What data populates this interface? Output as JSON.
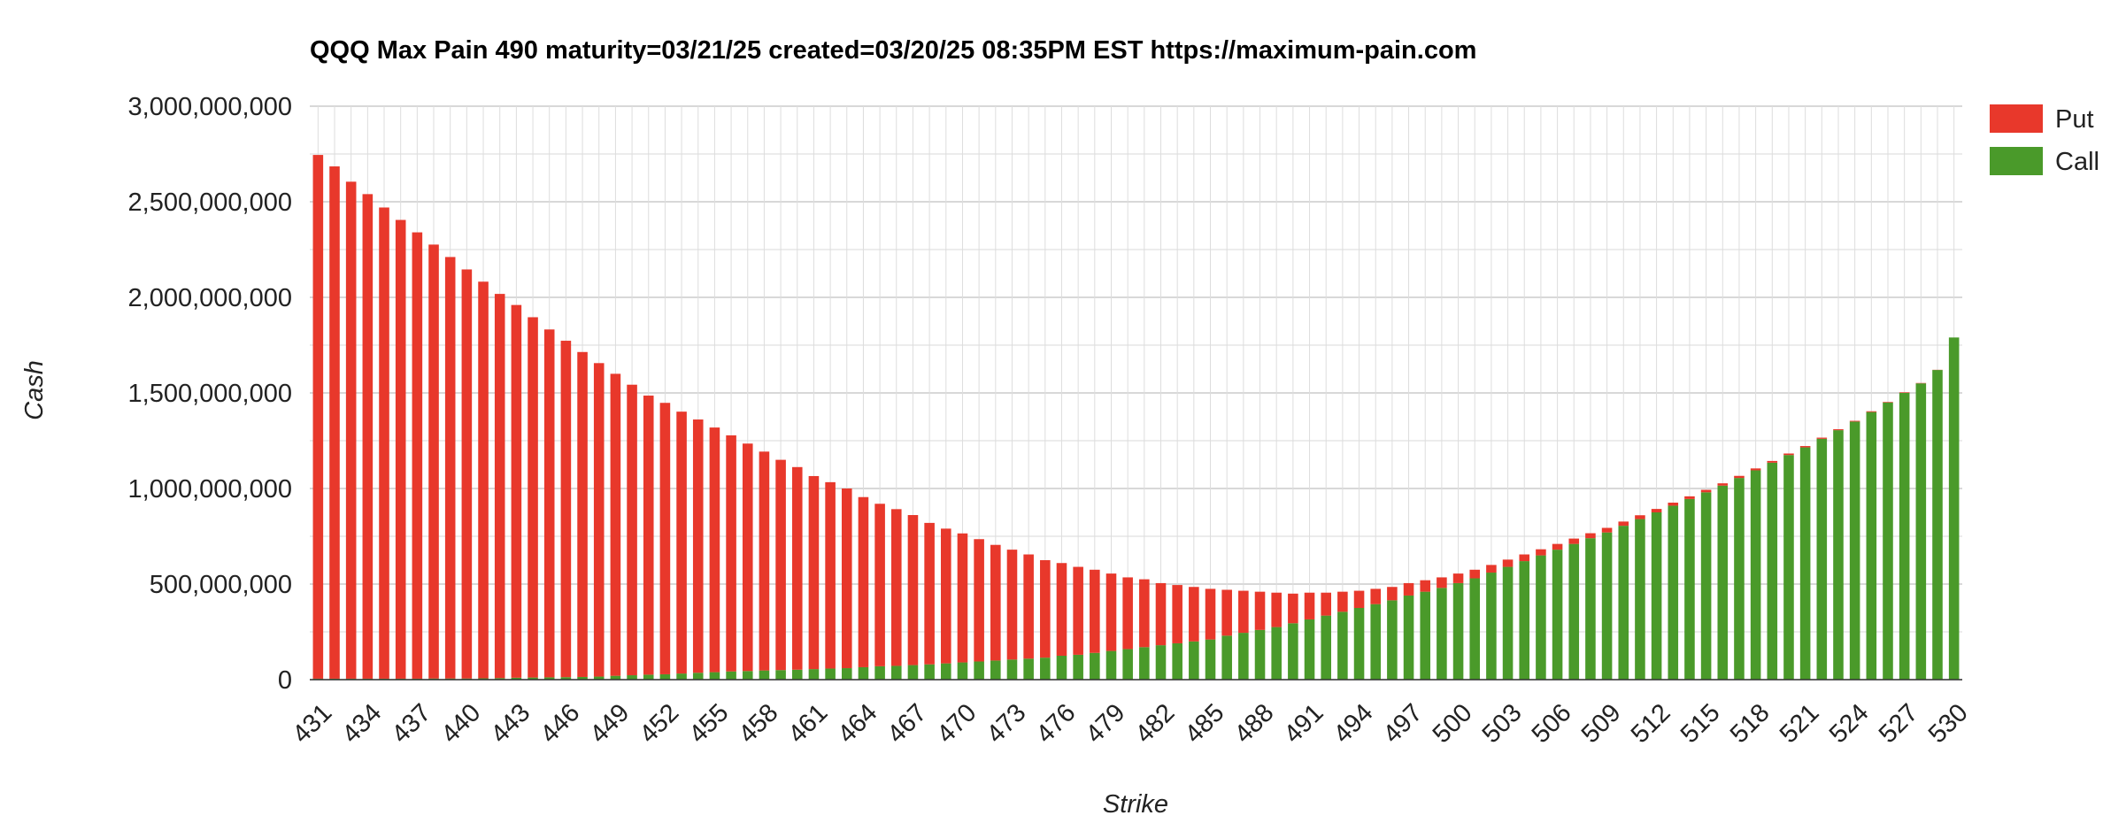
{
  "chart_data": {
    "type": "bar",
    "stacked": true,
    "title": "QQQ Max Pain 490 maturity=03/21/25 created=03/20/25 08:35PM EST https://maximum-pain.com",
    "xlabel": "Strike",
    "ylabel": "Cash",
    "ylim": [
      0,
      3000000000
    ],
    "yticks": [
      "0",
      "500,000,000",
      "1,000,000,000",
      "1,500,000,000",
      "2,000,000,000",
      "2,500,000,000",
      "3,000,000,000"
    ],
    "xticks": [
      "431",
      "434",
      "437",
      "440",
      "443",
      "446",
      "449",
      "452",
      "455",
      "458",
      "461",
      "464",
      "467",
      "470",
      "473",
      "476",
      "479",
      "482",
      "485",
      "488",
      "491",
      "494",
      "497",
      "500",
      "503",
      "506",
      "509",
      "512",
      "515",
      "518",
      "521",
      "524",
      "527",
      "530"
    ],
    "legend_position": "right",
    "grid": true,
    "categories": [
      431,
      432,
      433,
      434,
      435,
      436,
      437,
      438,
      439,
      440,
      441,
      442,
      443,
      444,
      445,
      446,
      447,
      448,
      449,
      450,
      451,
      452,
      453,
      454,
      455,
      456,
      457,
      458,
      459,
      460,
      461,
      462,
      463,
      464,
      465,
      466,
      467,
      468,
      469,
      470,
      471,
      472,
      473,
      474,
      475,
      476,
      477,
      478,
      479,
      480,
      481,
      482,
      483,
      484,
      485,
      486,
      487,
      488,
      489,
      490,
      491,
      492,
      493,
      494,
      495,
      496,
      497,
      498,
      499,
      500,
      501,
      502,
      503,
      504,
      505,
      506,
      507,
      508,
      509,
      510,
      511,
      512,
      513,
      514,
      515,
      516,
      517,
      518,
      519,
      520,
      521,
      522,
      523,
      524,
      525,
      526,
      527,
      528,
      529,
      530
    ],
    "series": [
      {
        "name": "Put",
        "color": "#e8382b",
        "values": [
          2740000000,
          2680000000,
          2600000000,
          2535000000,
          2465000000,
          2400000000,
          2335000000,
          2270000000,
          2205000000,
          2140000000,
          2075000000,
          2010000000,
          1950000000,
          1885000000,
          1820000000,
          1760000000,
          1700000000,
          1640000000,
          1580000000,
          1520000000,
          1460000000,
          1420000000,
          1370000000,
          1325000000,
          1280000000,
          1235000000,
          1190000000,
          1145000000,
          1100000000,
          1060000000,
          1010000000,
          975000000,
          940000000,
          890000000,
          850000000,
          820000000,
          785000000,
          740000000,
          705000000,
          675000000,
          640000000,
          605000000,
          575000000,
          545000000,
          510000000,
          485000000,
          460000000,
          435000000,
          405000000,
          375000000,
          355000000,
          325000000,
          305000000,
          285000000,
          265000000,
          240000000,
          220000000,
          200000000,
          180000000,
          155000000,
          140000000,
          120000000,
          105000000,
          90000000,
          80000000,
          70000000,
          65000000,
          60000000,
          55000000,
          50000000,
          45000000,
          40000000,
          38000000,
          35000000,
          32000000,
          30000000,
          28000000,
          26000000,
          24000000,
          22000000,
          20000000,
          18000000,
          16000000,
          14000000,
          13000000,
          12000000,
          11000000,
          10000000,
          9000000,
          8000000,
          7000000,
          6000000,
          5000000,
          4000000,
          4000000,
          3000000,
          3000000,
          2000000,
          1000000,
          0
        ]
      },
      {
        "name": "Call",
        "color": "#4a9a2a",
        "values": [
          5000000,
          5000000,
          5000000,
          5000000,
          5000000,
          5000000,
          5000000,
          6000000,
          6000000,
          6000000,
          7000000,
          8000000,
          10000000,
          11000000,
          12000000,
          13000000,
          14000000,
          16000000,
          20000000,
          23000000,
          26000000,
          28000000,
          32000000,
          36000000,
          39000000,
          43000000,
          45000000,
          48000000,
          50000000,
          52000000,
          55000000,
          58000000,
          60000000,
          65000000,
          70000000,
          72000000,
          76000000,
          80000000,
          85000000,
          90000000,
          95000000,
          100000000,
          105000000,
          110000000,
          115000000,
          125000000,
          130000000,
          140000000,
          150000000,
          160000000,
          170000000,
          180000000,
          190000000,
          200000000,
          210000000,
          230000000,
          245000000,
          260000000,
          275000000,
          295000000,
          315000000,
          335000000,
          355000000,
          375000000,
          395000000,
          415000000,
          440000000,
          460000000,
          480000000,
          505000000,
          530000000,
          560000000,
          590000000,
          620000000,
          650000000,
          680000000,
          710000000,
          740000000,
          770000000,
          805000000,
          840000000,
          875000000,
          910000000,
          945000000,
          980000000,
          1015000000,
          1055000000,
          1095000000,
          1135000000,
          1175000000,
          1215000000,
          1260000000,
          1305000000,
          1350000000,
          1400000000,
          1450000000,
          1500000000,
          1550000000,
          1620000000,
          1790000000
        ]
      }
    ]
  }
}
